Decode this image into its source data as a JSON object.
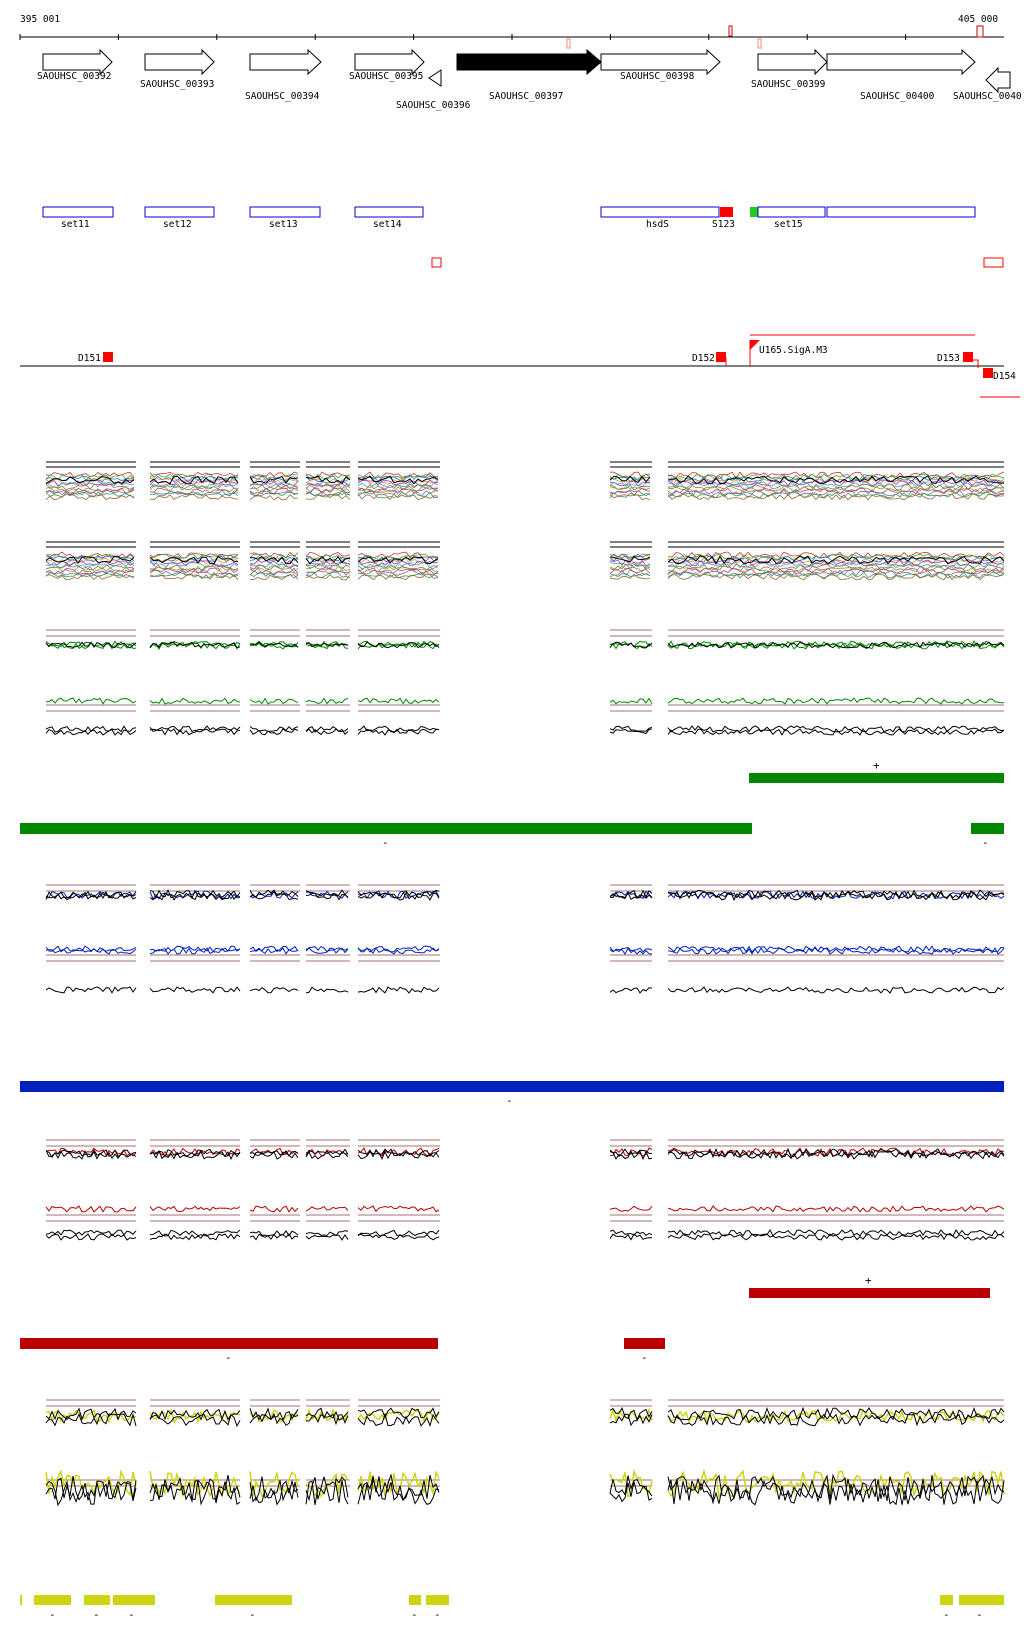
{
  "coords": {
    "start": "395 001",
    "end": "405 000"
  },
  "genes": [
    {
      "id": "g392",
      "label": "SAOUHSC_00392",
      "dir": "fwd",
      "filled": false
    },
    {
      "id": "g393",
      "label": "SAOUHSC_00393",
      "dir": "fwd",
      "filled": false
    },
    {
      "id": "g394",
      "label": "SAOUHSC_00394",
      "dir": "fwd",
      "filled": false
    },
    {
      "id": "g395",
      "label": "SAOUHSC_00395",
      "dir": "fwd",
      "filled": false
    },
    {
      "id": "g396",
      "label": "SAOUHSC_00396",
      "dir": "rev",
      "filled": false
    },
    {
      "id": "g397",
      "label": "SAOUHSC_00397",
      "dir": "fwd",
      "filled": true
    },
    {
      "id": "g398",
      "label": "SAOUHSC_00398",
      "dir": "fwd",
      "filled": false
    },
    {
      "id": "g399",
      "label": "SAOUHSC_00399",
      "dir": "fwd",
      "filled": false
    },
    {
      "id": "g400",
      "label": "SAOUHSC_00400",
      "dir": "fwd",
      "filled": false
    },
    {
      "id": "g401",
      "label": "SAOUHSC_0040",
      "dir": "rev",
      "filled": false
    }
  ],
  "features": [
    {
      "id": "set11",
      "label": "set11"
    },
    {
      "id": "set12",
      "label": "set12"
    },
    {
      "id": "set13",
      "label": "set13"
    },
    {
      "id": "set14",
      "label": "set14"
    },
    {
      "id": "hsdS",
      "label": "hsdS"
    },
    {
      "id": "S123",
      "label": "S123"
    },
    {
      "id": "set15",
      "label": "set15"
    }
  ],
  "regulatory": [
    {
      "id": "D151",
      "label": "D151"
    },
    {
      "id": "D152",
      "label": "D152"
    },
    {
      "id": "U165",
      "label": "U165.SigA.M3"
    },
    {
      "id": "D153",
      "label": "D153"
    },
    {
      "id": "D154",
      "label": "D154"
    }
  ],
  "colors": {
    "green": "#008800",
    "blue": "#0022bb",
    "red": "#bb0000",
    "yellow": "#ccd414",
    "guide": "#884444",
    "marker": "#ff0000",
    "tick": "#e89070"
  },
  "segments": {
    "green_plus": "+",
    "green_minus_a": "-",
    "green_minus_b": "-",
    "blue_minus": "-",
    "red_plus": "+",
    "red_minus_a": "-",
    "red_minus_b": "-",
    "yellow_minus_1": "-",
    "yellow_minus_2": "-",
    "yellow_minus_3": "-",
    "yellow_minus_4": "-",
    "yellow_minus_5": "-",
    "yellow_minus_6": "-",
    "yellow_minus_7": "-",
    "yellow_minus_8": "-"
  }
}
